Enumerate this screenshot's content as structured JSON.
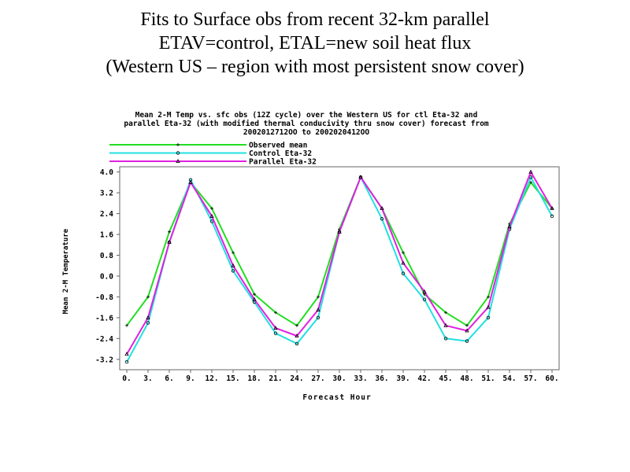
{
  "slide": {
    "title_lines": [
      "Fits to Surface obs from recent 32-km parallel",
      "ETAV=control, ETAL=new soil heat flux",
      "(Western US – region with most persistent snow cover)"
    ]
  },
  "chart_data": {
    "type": "line",
    "title_lines": [
      "Mean 2-M Temp vs. sfc obs (12Z cycle) over the Western US for ctl Eta-32 and",
      "parallel Eta-32 (with modified thermal conducivity thru snow cover) forecast from",
      "2002012712OO to 2002020412OO"
    ],
    "xlabel": "Forecast Hour",
    "ylabel": "Mean 2-M Temperature",
    "x": [
      0,
      3,
      6,
      9,
      12,
      15,
      18,
      21,
      24,
      27,
      30,
      33,
      36,
      39,
      42,
      45,
      48,
      51,
      54,
      57,
      60
    ],
    "x_tick_labels": [
      "0.",
      "3.",
      "6.",
      "9.",
      "12.",
      "15.",
      "18.",
      "21.",
      "24.",
      "27.",
      "30.",
      "33.",
      "36.",
      "39.",
      "42.",
      "45.",
      "48.",
      "51.",
      "54.",
      "57.",
      "60."
    ],
    "y_ticks": [
      -3.2,
      -2.4,
      -1.6,
      -0.8,
      0.0,
      0.8,
      1.6,
      2.4,
      3.2,
      4.0
    ],
    "y_tick_labels": [
      "-3.2",
      "-2.4",
      "-1.6",
      "-0.8",
      "0.0",
      "0.8",
      "1.6",
      "2.4",
      "3.2",
      "4.0"
    ],
    "xlim": [
      -1,
      61
    ],
    "ylim": [
      -3.6,
      4.2
    ],
    "legend_position": "top-left, above plot",
    "grid": false,
    "series": [
      {
        "name": "Observed mean",
        "color": "#22dd22",
        "marker": "plus",
        "values": [
          -1.9,
          -0.8,
          1.7,
          3.6,
          2.6,
          0.9,
          -0.7,
          -1.4,
          -1.9,
          -0.8,
          1.8,
          3.8,
          2.6,
          0.9,
          -0.7,
          -1.4,
          -1.9,
          -0.8,
          2.0,
          3.6,
          2.6
        ]
      },
      {
        "name": "Control Eta-32",
        "color": "#22e0e0",
        "marker": "circle",
        "values": [
          -3.3,
          -1.8,
          1.3,
          3.7,
          2.1,
          0.2,
          -1.0,
          -2.2,
          -2.6,
          -1.6,
          1.7,
          3.8,
          2.2,
          0.1,
          -0.9,
          -2.4,
          -2.5,
          -1.6,
          1.8,
          3.8,
          2.3
        ]
      },
      {
        "name": "Parallel Eta-32",
        "color": "#e020e0",
        "marker": "triangle",
        "values": [
          -3.0,
          -1.6,
          1.3,
          3.6,
          2.3,
          0.4,
          -0.9,
          -2.0,
          -2.3,
          -1.3,
          1.7,
          3.8,
          2.6,
          0.5,
          -0.6,
          -1.9,
          -2.1,
          -1.2,
          1.9,
          4.0,
          2.6
        ]
      }
    ]
  }
}
